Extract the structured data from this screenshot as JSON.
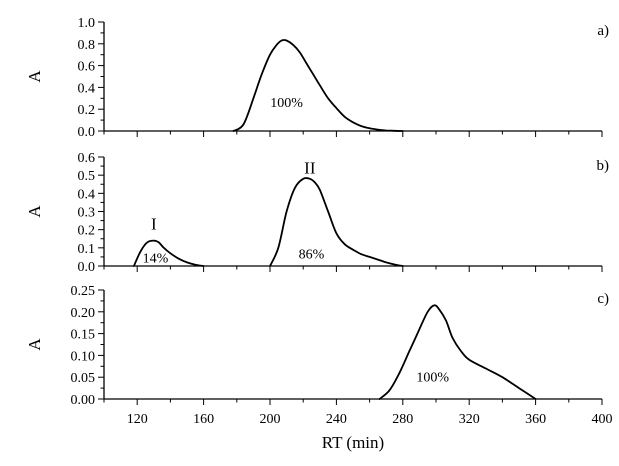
{
  "chart_data": [
    {
      "type": "line",
      "panel_label": "a)",
      "ylabel": "A",
      "xlabel": "",
      "xlim": [
        100,
        400
      ],
      "ylim": [
        0,
        1.0
      ],
      "yticks": [
        "0.0",
        "0.2",
        "0.4",
        "0.6",
        "0.8",
        "1.0"
      ],
      "ytick_values": [
        0,
        0.2,
        0.4,
        0.6,
        0.8,
        1.0
      ],
      "series": [
        {
          "x": [
            178,
            184,
            190,
            195,
            200,
            204,
            207,
            210,
            214,
            218,
            222,
            226,
            230,
            235,
            240,
            245,
            250,
            255,
            260,
            265,
            270,
            275,
            280
          ],
          "y": [
            0.0,
            0.06,
            0.3,
            0.52,
            0.7,
            0.79,
            0.83,
            0.83,
            0.79,
            0.72,
            0.62,
            0.52,
            0.42,
            0.3,
            0.21,
            0.13,
            0.08,
            0.045,
            0.025,
            0.012,
            0.005,
            0.002,
            0.0
          ]
        }
      ],
      "annotations": [
        {
          "text": "100%",
          "x": 210,
          "y": 0.22
        }
      ]
    },
    {
      "type": "line",
      "panel_label": "b)",
      "ylabel": "A",
      "xlabel": "",
      "xlim": [
        100,
        400
      ],
      "ylim": [
        0,
        0.6
      ],
      "yticks": [
        "0.0",
        "0.1",
        "0.2",
        "0.3",
        "0.4",
        "0.5",
        "0.6"
      ],
      "ytick_values": [
        0,
        0.1,
        0.2,
        0.3,
        0.4,
        0.5,
        0.6
      ],
      "series": [
        {
          "x": [
            118,
            122,
            126,
            130,
            133,
            136,
            140,
            145,
            150,
            155,
            160
          ],
          "y": [
            0.0,
            0.08,
            0.13,
            0.14,
            0.13,
            0.1,
            0.07,
            0.04,
            0.02,
            0.007,
            0.0
          ]
        },
        {
          "x": [
            200,
            205,
            210,
            215,
            220,
            224,
            227,
            230,
            235,
            240,
            245,
            250,
            255,
            260,
            265,
            270,
            275,
            280
          ],
          "y": [
            0.0,
            0.1,
            0.3,
            0.43,
            0.48,
            0.48,
            0.46,
            0.42,
            0.3,
            0.18,
            0.12,
            0.09,
            0.065,
            0.05,
            0.035,
            0.02,
            0.008,
            0.0
          ]
        }
      ],
      "annotations": [
        {
          "text": "I",
          "x": 130,
          "y": 0.2
        },
        {
          "text": "II",
          "x": 224,
          "y": 0.51
        },
        {
          "text": "14%",
          "x": 131,
          "y": 0.02
        },
        {
          "text": "86%",
          "x": 225,
          "y": 0.04
        }
      ]
    },
    {
      "type": "line",
      "panel_label": "c)",
      "ylabel": "A",
      "xlabel": "RT (min)",
      "xlim": [
        100,
        400
      ],
      "ylim": [
        0,
        0.25
      ],
      "yticks": [
        "0.00",
        "0.05",
        "0.10",
        "0.15",
        "0.20",
        "0.25"
      ],
      "ytick_values": [
        0,
        0.05,
        0.1,
        0.15,
        0.2,
        0.25
      ],
      "xticks": [
        "120",
        "160",
        "200",
        "240",
        "280",
        "320",
        "360",
        "400"
      ],
      "xtick_values": [
        120,
        160,
        200,
        240,
        280,
        320,
        360,
        400
      ],
      "series": [
        {
          "x": [
            266,
            272,
            278,
            284,
            290,
            295,
            299,
            302,
            306,
            310,
            315,
            320,
            330,
            340,
            350,
            360
          ],
          "y": [
            0.0,
            0.02,
            0.06,
            0.11,
            0.16,
            0.2,
            0.215,
            0.205,
            0.18,
            0.14,
            0.11,
            0.09,
            0.07,
            0.05,
            0.025,
            0.0
          ]
        }
      ],
      "annotations": [
        {
          "text": "100%",
          "x": 298,
          "y": 0.04
        }
      ]
    }
  ]
}
